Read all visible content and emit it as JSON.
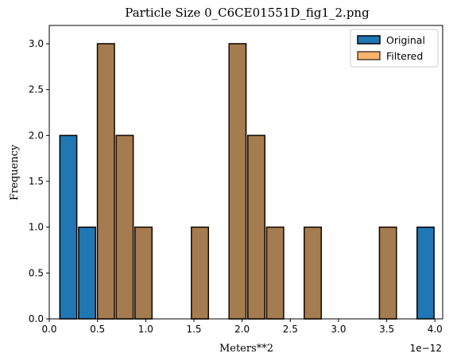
{
  "chart_data": {
    "type": "bar",
    "title": "Particle Size 0_C6CE01551D_fig1_2.png",
    "xlabel": "Meters**2",
    "ylabel": "Frequency",
    "x_offset_label": "1e−12",
    "xlim": [
      0.0,
      4.08
    ],
    "ylim": [
      0.0,
      3.2
    ],
    "x_ticks": [
      0.0,
      0.5,
      1.0,
      1.5,
      2.0,
      2.5,
      3.0,
      3.5,
      4.0
    ],
    "x_tick_labels": [
      "0.0",
      "0.5",
      "1.0",
      "1.5",
      "2.0",
      "2.5",
      "3.0",
      "3.5",
      "4.0"
    ],
    "y_ticks": [
      0.0,
      0.5,
      1.0,
      1.5,
      2.0,
      2.5,
      3.0
    ],
    "y_tick_labels": [
      "0.0",
      "0.5",
      "1.0",
      "1.5",
      "2.0",
      "2.5",
      "3.0"
    ],
    "bin_edges": [
      0.1,
      0.295,
      0.49,
      0.685,
      0.88,
      1.075,
      1.27,
      1.465,
      1.66,
      1.855,
      2.05,
      2.245,
      2.44,
      2.635,
      2.83,
      3.025,
      3.22,
      3.415,
      3.61,
      3.805,
      4.0
    ],
    "series": [
      {
        "name": "Original",
        "color": "#1f77b4",
        "values": [
          2,
          1,
          3,
          2,
          1,
          0,
          0,
          1,
          0,
          3,
          2,
          1,
          0,
          1,
          0,
          0,
          0,
          1,
          0,
          1
        ]
      },
      {
        "name": "Filtered",
        "color": "#ff7f0e",
        "values": [
          0,
          0,
          3,
          2,
          1,
          0,
          0,
          1,
          0,
          3,
          2,
          1,
          0,
          1,
          0,
          0,
          0,
          1,
          0,
          0
        ]
      }
    ],
    "legend_position": "top-right",
    "grid": false
  }
}
